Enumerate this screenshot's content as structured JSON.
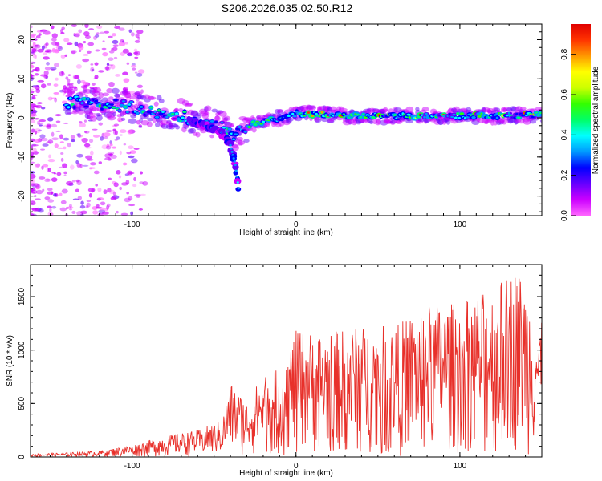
{
  "title": "S206.2026.035.02.50.R12",
  "chart_data": [
    {
      "type": "heatmap",
      "title": "S206.2026.035.02.50.R12",
      "xlabel": "Height of straight line (km)",
      "ylabel": "Frequency (Hz)",
      "xlim": [
        -162,
        150
      ],
      "ylim": [
        -25,
        24
      ],
      "xticks": [
        -100,
        0,
        100
      ],
      "yticks": [
        20,
        10,
        0,
        -10,
        -20
      ],
      "colorbar": {
        "label": "Normalized spectral amplitude",
        "ticks": [
          0.0,
          0.2,
          0.4,
          0.6,
          0.8
        ],
        "range": [
          0,
          0.95
        ],
        "colormap": [
          "#ff66ff",
          "#cc00ff",
          "#6600ff",
          "#0000ff",
          "#0099ff",
          "#00ffff",
          "#00ff66",
          "#33ff00",
          "#ccff00",
          "#ffff00",
          "#ff9900",
          "#ff3300",
          "#e00000"
        ]
      },
      "ridge": {
        "x": [
          -135,
          -120,
          -105,
          -95,
          -85,
          -75,
          -65,
          -55,
          -45,
          -38,
          -30,
          -20,
          -10,
          0,
          10,
          30,
          60,
          90,
          120,
          150
        ],
        "freq": [
          4,
          3.5,
          3,
          2.5,
          1.5,
          1,
          0,
          -1,
          -2,
          -4,
          -2,
          -1,
          0,
          1,
          1,
          0.5,
          0.5,
          0.5,
          0.5,
          0.8
        ]
      },
      "branch": {
        "x": [
          -65,
          -55,
          -45,
          -40,
          -37,
          -35
        ],
        "freq": [
          -1,
          -2,
          -4,
          -7,
          -12,
          -18
        ]
      }
    },
    {
      "type": "line",
      "xlabel": "Height of straight line (km)",
      "ylabel": "SNR (10 * v/v)",
      "xlim": [
        -162,
        150
      ],
      "ylim": [
        0,
        1800
      ],
      "xticks": [
        -100,
        0,
        100
      ],
      "yticks": [
        0,
        500,
        1000,
        1500
      ],
      "color": "#e8302a",
      "series": [
        {
          "name": "SNR",
          "envelope_x": [
            -162,
            -140,
            -120,
            -100,
            -80,
            -60,
            -45,
            -40,
            -30,
            -20,
            -10,
            0,
            20,
            40,
            60,
            80,
            100,
            120,
            135,
            150
          ],
          "envelope_y": [
            30,
            40,
            60,
            110,
            200,
            250,
            350,
            700,
            520,
            780,
            820,
            1180,
            1170,
            1220,
            1230,
            1420,
            1450,
            1580,
            1790,
            1250
          ]
        }
      ]
    }
  ]
}
